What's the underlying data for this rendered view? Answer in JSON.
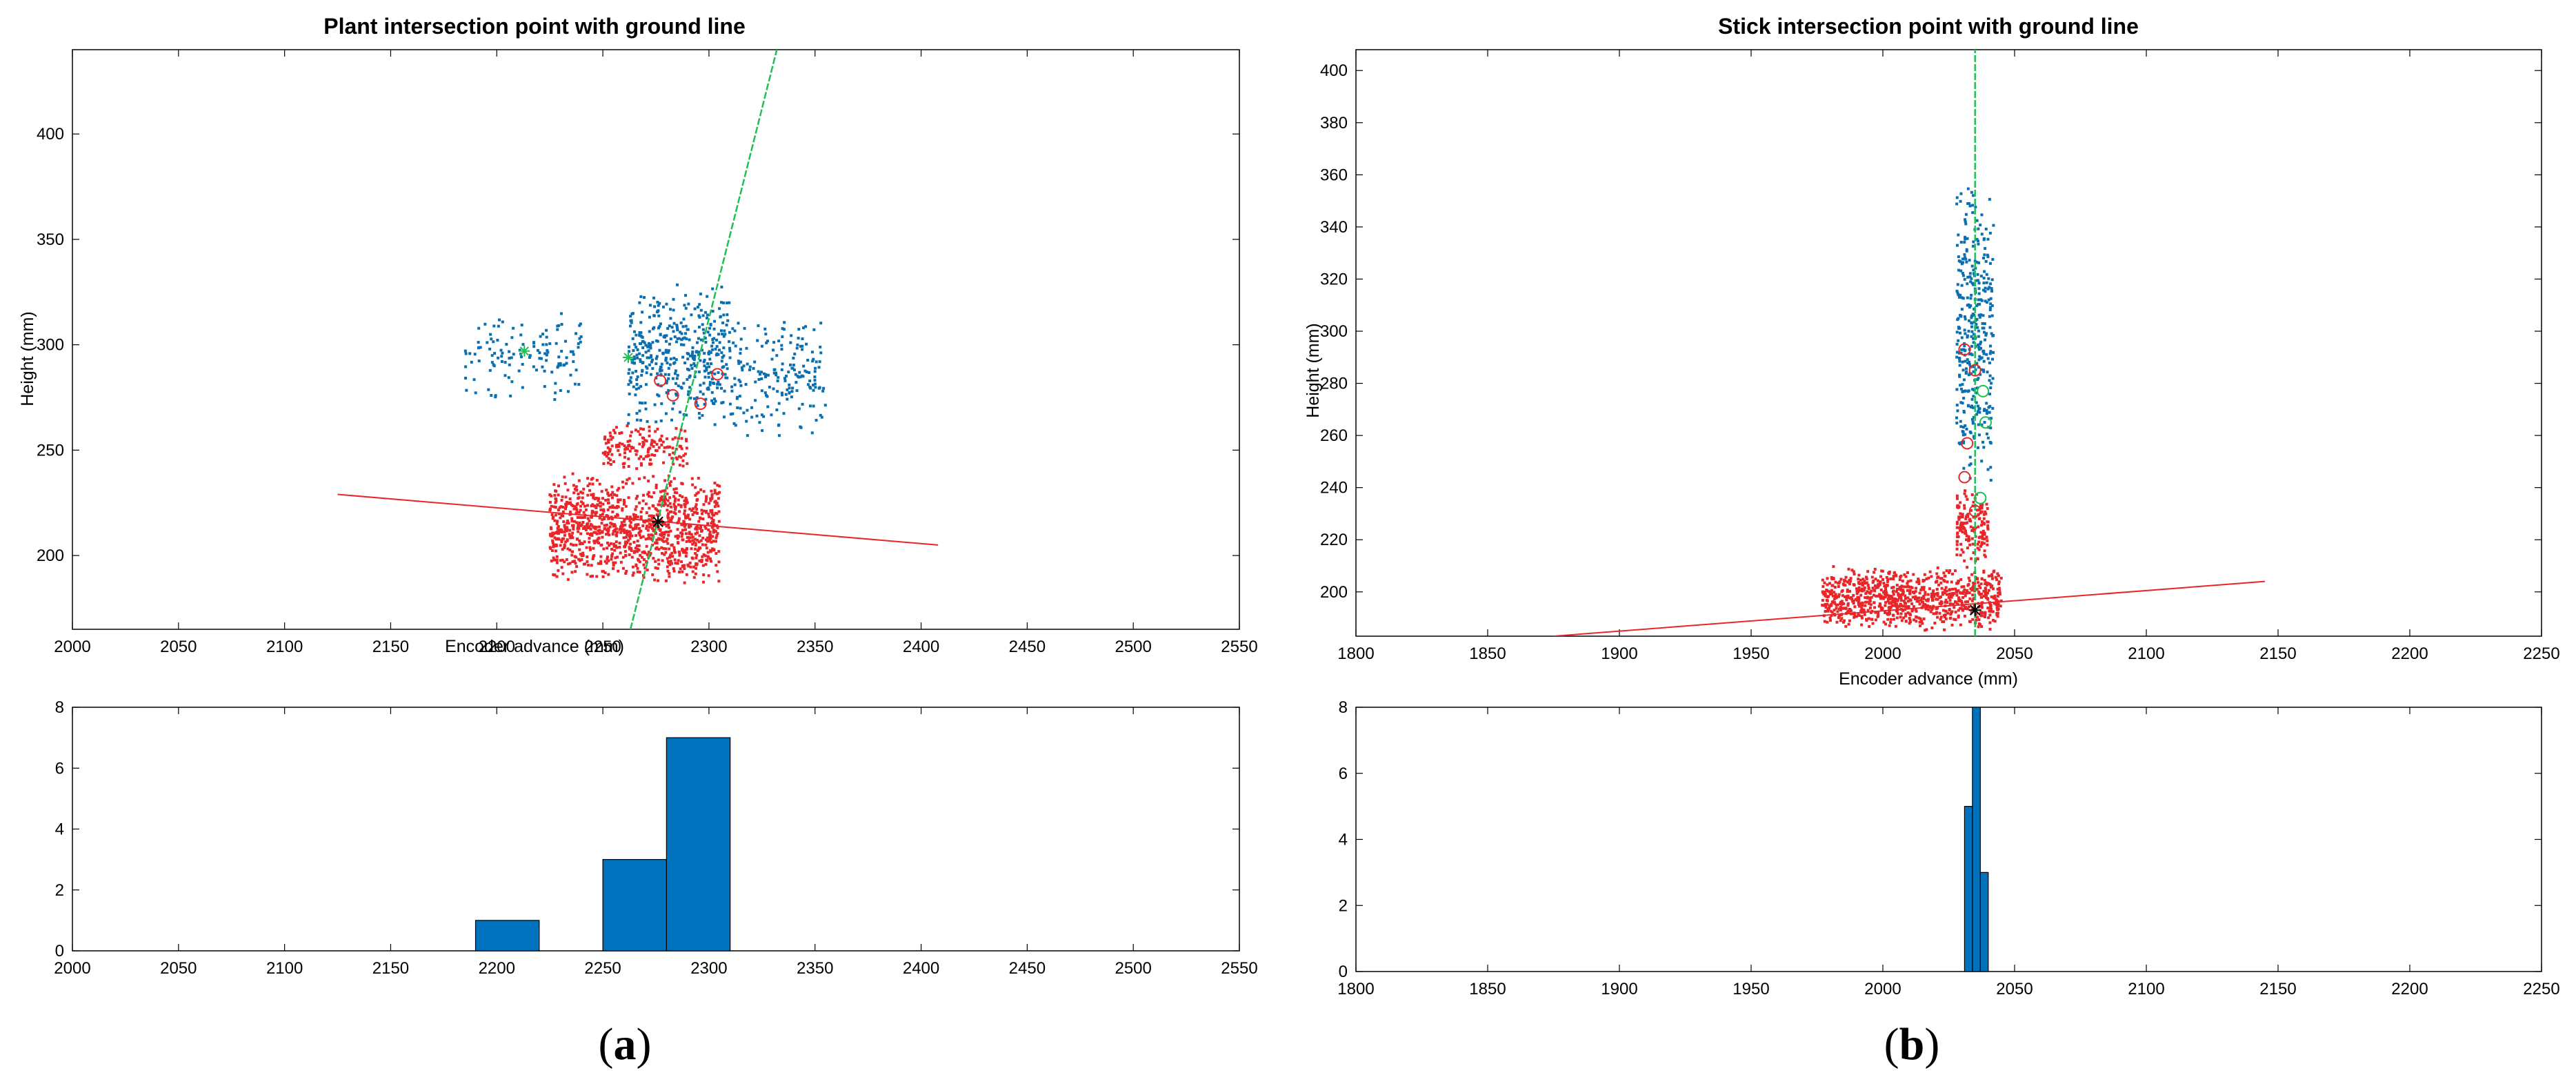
{
  "panels": [
    {
      "label_open": "(",
      "label_letter": "a",
      "label_close": ")",
      "scatter": {
        "title": "Plant intersection point with ground line",
        "xlabel": "Encoder advance (mm)",
        "ylabel": "Height (mm)",
        "xlim": [
          2000,
          2550
        ],
        "ylim": [
          165,
          440
        ],
        "xticks": [
          2000,
          2050,
          2100,
          2150,
          2200,
          2250,
          2300,
          2350,
          2400,
          2450,
          2500,
          2550
        ],
        "yticks": [
          200,
          250,
          300,
          350,
          400
        ]
      },
      "histogram": {
        "xlim": [
          2000,
          2550
        ],
        "ylim": [
          0,
          8
        ],
        "xticks": [
          2000,
          2050,
          2100,
          2150,
          2200,
          2250,
          2300,
          2350,
          2400,
          2450,
          2500,
          2550
        ],
        "yticks": [
          0,
          2,
          4,
          6,
          8
        ]
      }
    },
    {
      "label_open": "(",
      "label_letter": "b",
      "label_close": ")",
      "scatter": {
        "title": "Stick intersection point with ground line",
        "xlabel": "Encoder advance (mm)",
        "ylabel": "Height (mm)",
        "xlim": [
          1800,
          2250
        ],
        "ylim": [
          183,
          408
        ],
        "xticks": [
          1800,
          1850,
          1900,
          1950,
          2000,
          2050,
          2100,
          2150,
          2200,
          2250
        ],
        "yticks": [
          200,
          220,
          240,
          260,
          280,
          300,
          320,
          340,
          360,
          380,
          400
        ]
      },
      "histogram": {
        "xlim": [
          1800,
          2250
        ],
        "ylim": [
          0,
          8
        ],
        "xticks": [
          1800,
          1850,
          1900,
          1950,
          2000,
          2050,
          2100,
          2150,
          2200,
          2250
        ],
        "yticks": [
          0,
          2,
          4,
          6,
          8
        ]
      }
    }
  ],
  "chart_data": [
    {
      "type": "scatter",
      "title": "Plant intersection point with ground line",
      "xlabel": "Encoder advance (mm)",
      "ylabel": "Height (mm)",
      "xlim": [
        2000,
        2550
      ],
      "ylim": [
        165,
        440
      ],
      "grid": false,
      "colors": {
        "above_ground": "#0a6fb0",
        "ground": "#e8262a",
        "ground_line": "#e8262a",
        "plant_line": "#1fbf55",
        "intersection": "#000000"
      },
      "point_clouds": [
        {
          "color": "#0a6fb0",
          "x_range": [
            2185,
            2240
          ],
          "y_range": [
            270,
            320
          ],
          "count": 130
        },
        {
          "color": "#0a6fb0",
          "x_range": [
            2262,
            2310
          ],
          "y_range": [
            260,
            330
          ],
          "count": 420
        },
        {
          "color": "#0a6fb0",
          "x_range": [
            2310,
            2355
          ],
          "y_range": [
            255,
            315
          ],
          "count": 190
        },
        {
          "color": "#e8262a",
          "x_range": [
            2225,
            2305
          ],
          "y_range": [
            185,
            240
          ],
          "count": 1100
        },
        {
          "color": "#e8262a",
          "x_range": [
            2250,
            2290
          ],
          "y_range": [
            240,
            262
          ],
          "count": 160
        }
      ],
      "ground_line": {
        "x": [
          2125,
          2408
        ],
        "y": [
          229,
          205
        ]
      },
      "plant_line": {
        "x": [
          2263,
          2332
        ],
        "y": [
          165,
          440
        ]
      },
      "intersection": {
        "x": 2276,
        "y": 216
      },
      "markers": [
        {
          "x": 2213,
          "y": 297,
          "symbol": "star",
          "color": "#1fbf55"
        },
        {
          "x": 2262,
          "y": 294,
          "symbol": "star",
          "color": "#1fbf55"
        },
        {
          "x": 2277,
          "y": 283,
          "symbol": "circle",
          "color": "#e8262a"
        },
        {
          "x": 2283,
          "y": 276,
          "symbol": "circle",
          "color": "#e8262a"
        },
        {
          "x": 2304,
          "y": 286,
          "symbol": "circle",
          "color": "#e8262a"
        },
        {
          "x": 2296,
          "y": 272,
          "symbol": "circle",
          "color": "#e8262a"
        }
      ]
    },
    {
      "type": "bar",
      "xlim": [
        2000,
        2550
      ],
      "ylim": [
        0,
        8
      ],
      "color": "#0072bd",
      "bins": [
        {
          "x0": 2190,
          "x1": 2220,
          "value": 1
        },
        {
          "x0": 2250,
          "x1": 2280,
          "value": 3
        },
        {
          "x0": 2280,
          "x1": 2310,
          "value": 7
        }
      ]
    },
    {
      "type": "scatter",
      "title": "Stick intersection point with ground line",
      "xlabel": "Encoder advance (mm)",
      "ylabel": "Height (mm)",
      "xlim": [
        1800,
        2250
      ],
      "ylim": [
        183,
        408
      ],
      "grid": false,
      "colors": {
        "above_ground": "#0a6fb0",
        "ground": "#e8262a",
        "ground_line": "#e8262a",
        "stick_line": "#1fbf55",
        "intersection": "#000000"
      },
      "point_clouds": [
        {
          "color": "#e8262a",
          "x_range": [
            1977,
            2045
          ],
          "y_range": [
            185,
            210
          ],
          "count": 900
        },
        {
          "color": "#e8262a",
          "x_range": [
            2028,
            2040
          ],
          "y_range": [
            210,
            240
          ],
          "count": 160
        },
        {
          "color": "#0a6fb0",
          "x_range": [
            2028,
            2042
          ],
          "y_range": [
            235,
            362
          ],
          "count": 380
        }
      ],
      "ground_line": {
        "x": [
          1875,
          2145
        ],
        "y": [
          183,
          204
        ]
      },
      "stick_line": {
        "x": [
          2035,
          2035
        ],
        "y": [
          183,
          408
        ]
      },
      "intersection": {
        "x": 2035,
        "y": 193
      },
      "markers": [
        {
          "x": 2031,
          "y": 293,
          "symbol": "circle",
          "color": "#e8262a"
        },
        {
          "x": 2035,
          "y": 285,
          "symbol": "circle",
          "color": "#e8262a"
        },
        {
          "x": 2038,
          "y": 277,
          "symbol": "circle",
          "color": "#1fbf55"
        },
        {
          "x": 2039,
          "y": 265,
          "symbol": "circle",
          "color": "#1fbf55"
        },
        {
          "x": 2032,
          "y": 257,
          "symbol": "circle",
          "color": "#e8262a"
        },
        {
          "x": 2031,
          "y": 244,
          "symbol": "circle",
          "color": "#e8262a"
        },
        {
          "x": 2037,
          "y": 236,
          "symbol": "circle",
          "color": "#1fbf55"
        },
        {
          "x": 2035,
          "y": 231,
          "symbol": "circle",
          "color": "#e8262a"
        }
      ]
    },
    {
      "type": "bar",
      "xlim": [
        1800,
        2250
      ],
      "ylim": [
        0,
        8
      ],
      "color": "#0072bd",
      "bins": [
        {
          "x0": 2031,
          "x1": 2034,
          "value": 5
        },
        {
          "x0": 2034,
          "x1": 2037,
          "value": 8
        },
        {
          "x0": 2037,
          "x1": 2040,
          "value": 3
        }
      ]
    }
  ]
}
